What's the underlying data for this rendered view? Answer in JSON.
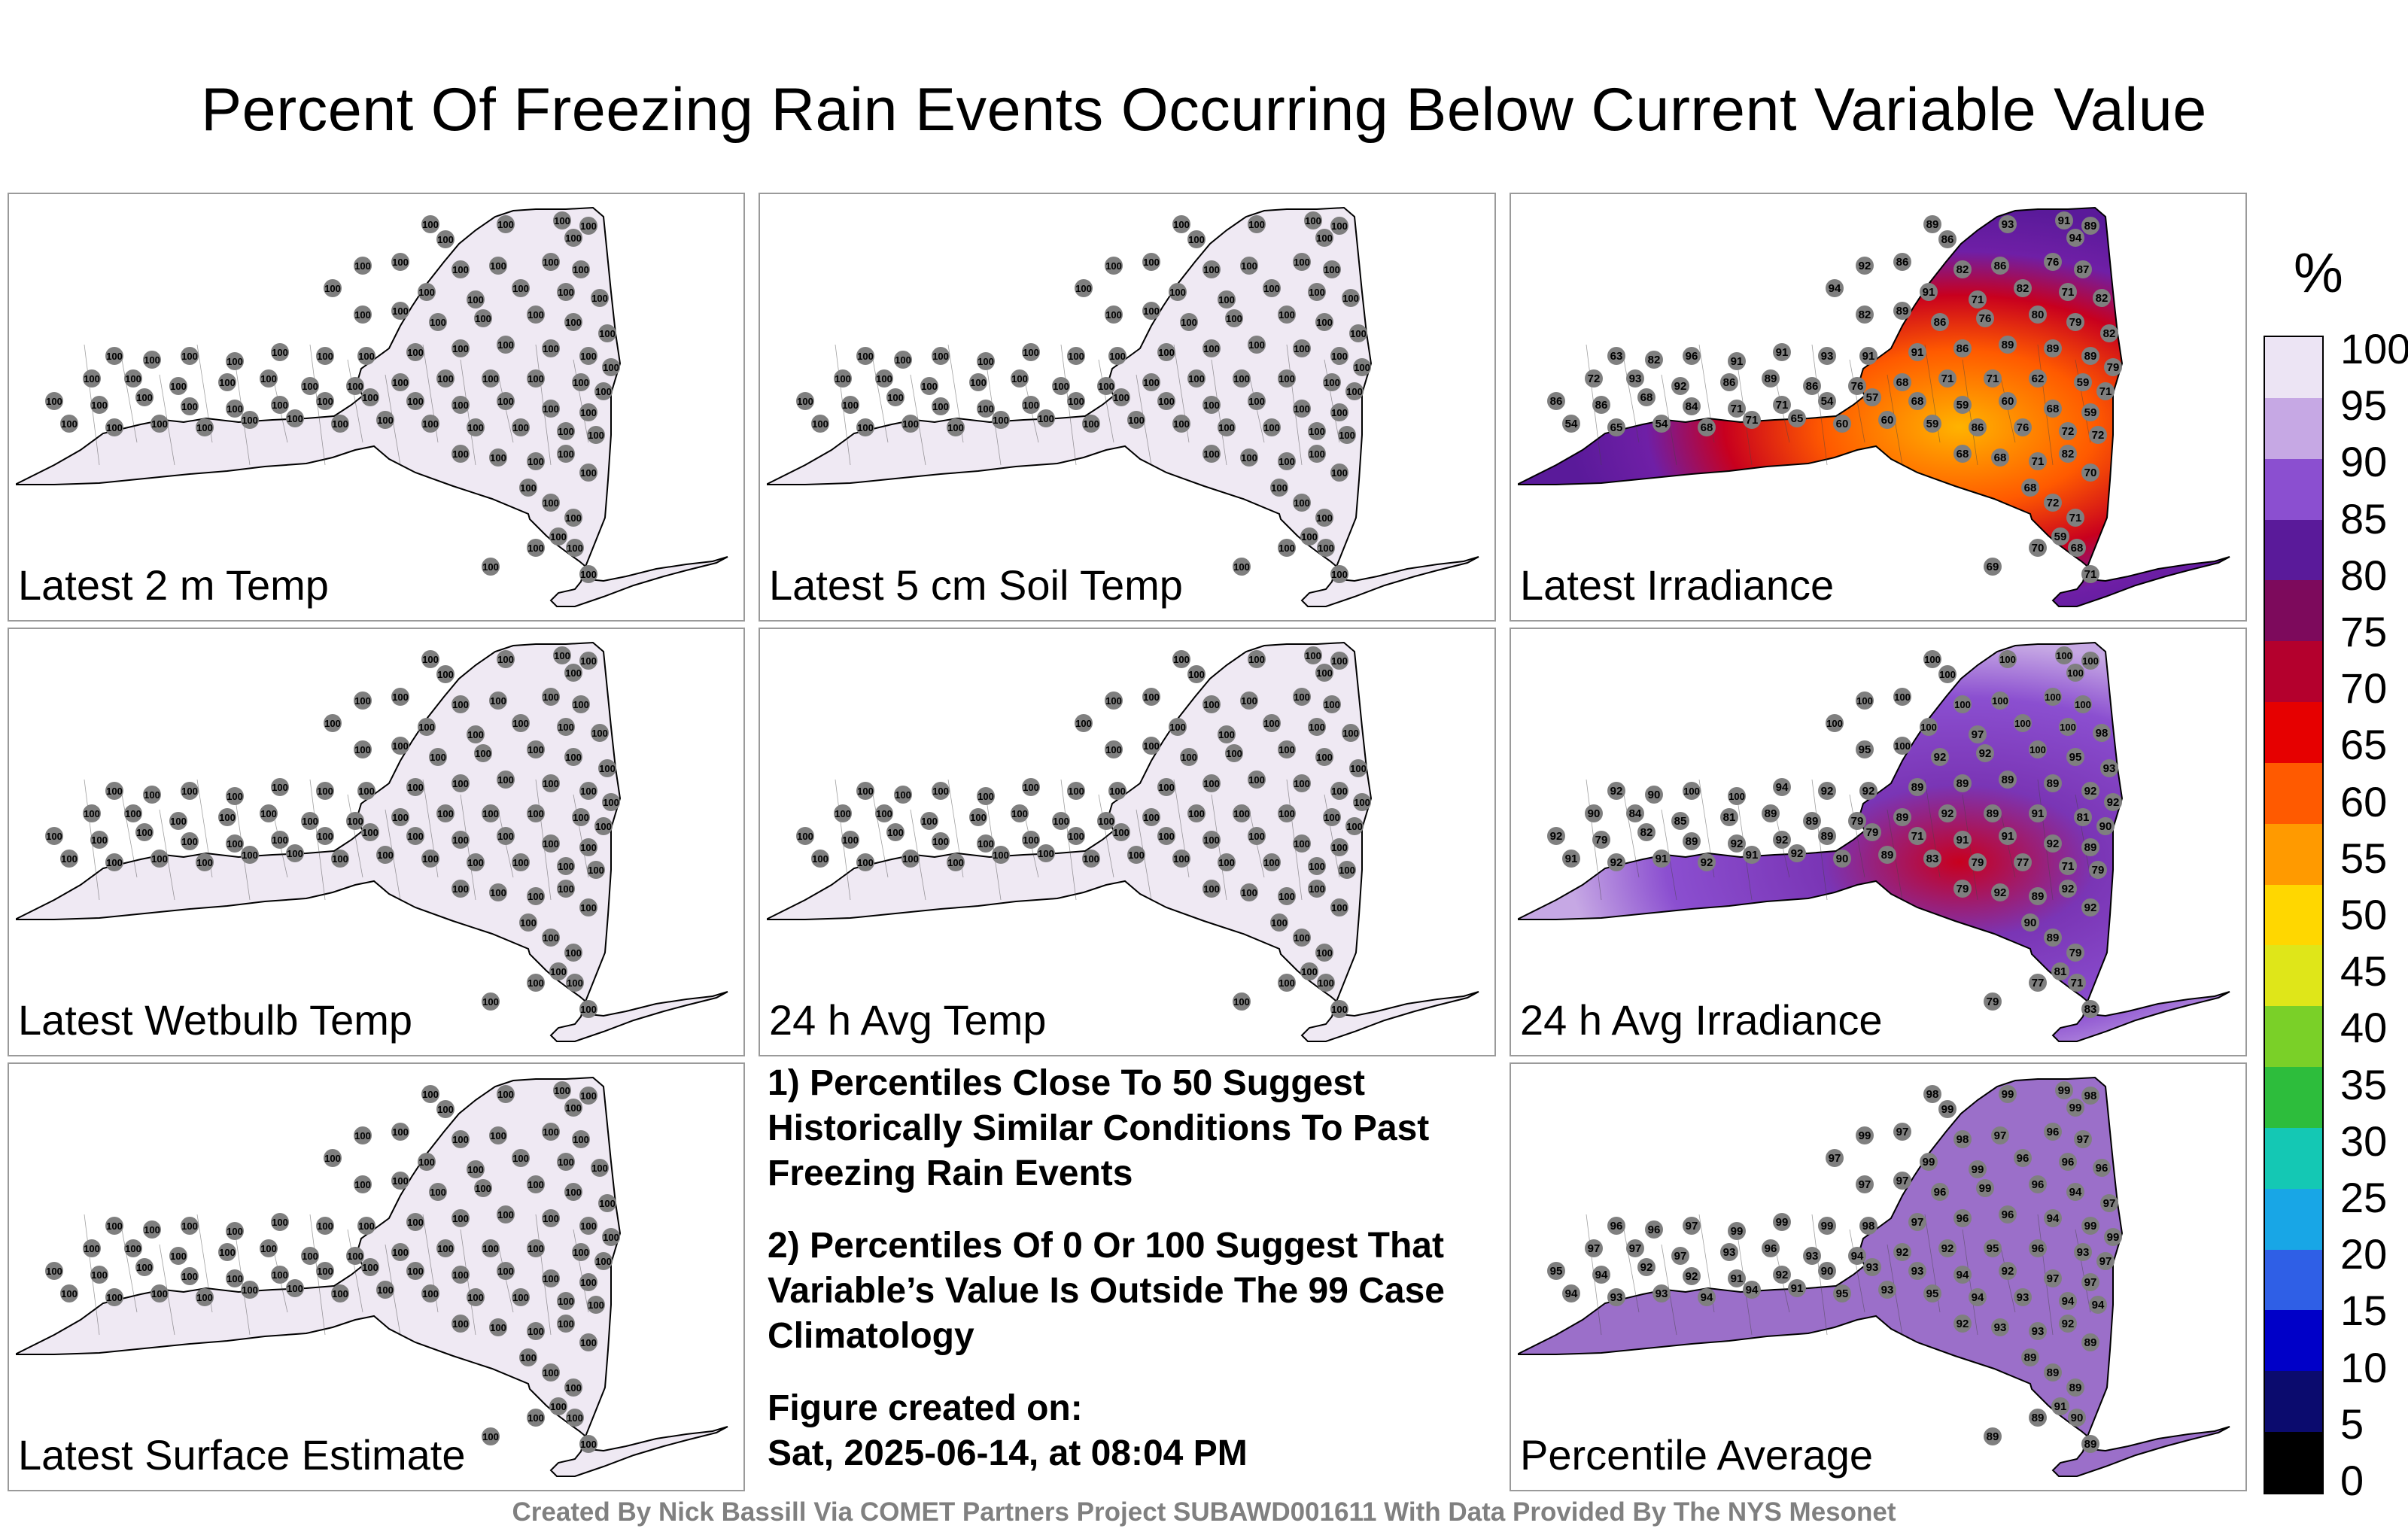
{
  "title": "Percent Of Freezing Rain Events Occurring Below Current Variable Value",
  "panels": [
    {
      "label": "Latest 2 m Temp",
      "fill": "#efe9f3",
      "values": [
        "100",
        "100",
        "100",
        "100",
        "100",
        "100",
        "100",
        "100",
        "100",
        "100",
        "100",
        "100",
        "100",
        "100",
        "100",
        "100",
        "100",
        "100",
        "100",
        "100",
        "100",
        "100",
        "100",
        "100",
        "100",
        "100",
        "100",
        "100",
        "100",
        "100",
        "100",
        "100",
        "100",
        "100",
        "100",
        "100",
        "100",
        "100",
        "100",
        "100",
        "100",
        "100",
        "100",
        "100",
        "100",
        "100",
        "100",
        "100",
        "100",
        "100",
        "100",
        "100",
        "100",
        "100",
        "100",
        "100",
        "100",
        "100",
        "100",
        "100",
        "100",
        "100",
        "100",
        "100",
        "100",
        "100",
        "100",
        "100",
        "100",
        "100",
        "100",
        "100",
        "100",
        "100",
        "100",
        "100",
        "100",
        "100",
        "100",
        "100",
        "100",
        "100",
        "100",
        "100",
        "100",
        "100",
        "100",
        "100",
        "100",
        "100"
      ]
    },
    {
      "label": "Latest 5 cm Soil Temp",
      "fill": "#efe9f3",
      "values": [
        "100",
        "100",
        "100",
        "100",
        "100",
        "100",
        "100",
        "100",
        "100",
        "100",
        "100",
        "100",
        "100",
        "100",
        "100",
        "100",
        "100",
        "100",
        "100",
        "100",
        "100",
        "100",
        "100",
        "100",
        "100",
        "100",
        "100",
        "100",
        "100",
        "100",
        "100",
        "100",
        "100",
        "100",
        "100",
        "100",
        "100",
        "100",
        "100",
        "100",
        "100",
        "100",
        "100",
        "100",
        "100",
        "100",
        "100",
        "100",
        "100",
        "100",
        "100",
        "100",
        "100",
        "100",
        "100",
        "100",
        "100",
        "100",
        "100",
        "100",
        "100",
        "100",
        "100",
        "100",
        "100",
        "100",
        "100",
        "100",
        "100",
        "100",
        "100",
        "100",
        "100",
        "100",
        "100",
        "100",
        "100",
        "100",
        "100",
        "100",
        "100",
        "100",
        "100",
        "100",
        "100",
        "100",
        "100",
        "100",
        "100",
        "100"
      ]
    },
    {
      "label": "Latest Irradiance",
      "fill": "#6f1fa6",
      "values": [
        "89",
        "93",
        "91",
        "89",
        "86",
        "94",
        "92",
        "86",
        "82",
        "86",
        "76",
        "87",
        "94",
        "91",
        "71",
        "82",
        "71",
        "82",
        "82",
        "89",
        "86",
        "76",
        "80",
        "79",
        "82",
        "63",
        "82",
        "96",
        "91",
        "91",
        "93",
        "91",
        "91",
        "86",
        "89",
        "89",
        "89",
        "79",
        "72",
        "93",
        "92",
        "86",
        "89",
        "86",
        "76",
        "68",
        "71",
        "71",
        "62",
        "59",
        "71",
        "86",
        "86",
        "68",
        "84",
        "71",
        "71",
        "54",
        "57",
        "68",
        "59",
        "60",
        "68",
        "59",
        "54",
        "65",
        "54",
        "68",
        "71",
        "65",
        "60",
        "60",
        "59",
        "86",
        "76",
        "72",
        "72",
        "68",
        "68",
        "71",
        "82",
        "70",
        "68",
        "72",
        "71",
        "59",
        "68",
        "71",
        "69",
        "70",
        "64",
        "65",
        "64",
        "57",
        "54",
        "54",
        "54",
        "53",
        "54",
        "54"
      ]
    },
    {
      "label": "Latest Wetbulb Temp",
      "fill": "#efe9f3",
      "values": [
        "100",
        "100",
        "100",
        "100",
        "100",
        "100",
        "100",
        "100",
        "100",
        "100",
        "100",
        "100",
        "100",
        "100",
        "100",
        "100",
        "100",
        "100",
        "100",
        "100",
        "100",
        "100",
        "100",
        "100",
        "100",
        "100",
        "100",
        "100",
        "100",
        "100",
        "100",
        "100",
        "100",
        "100",
        "100",
        "100",
        "100",
        "100",
        "100",
        "100",
        "100",
        "100",
        "100",
        "100",
        "100",
        "100",
        "100",
        "100",
        "100",
        "100",
        "100",
        "100",
        "100",
        "100",
        "100",
        "100",
        "100",
        "100",
        "100",
        "100",
        "100",
        "100",
        "100",
        "100",
        "100",
        "100",
        "100",
        "100",
        "100",
        "100",
        "100",
        "100",
        "100",
        "100",
        "100",
        "100",
        "100",
        "100",
        "100",
        "100",
        "100",
        "100",
        "100",
        "100",
        "100",
        "100",
        "100",
        "100",
        "100",
        "100"
      ]
    },
    {
      "label": "24 h Avg Temp",
      "fill": "#efe9f3",
      "values": [
        "100",
        "100",
        "100",
        "100",
        "100",
        "100",
        "100",
        "100",
        "100",
        "100",
        "100",
        "100",
        "100",
        "100",
        "100",
        "100",
        "100",
        "100",
        "100",
        "100",
        "100",
        "100",
        "100",
        "100",
        "100",
        "100",
        "100",
        "100",
        "100",
        "100",
        "100",
        "100",
        "100",
        "100",
        "100",
        "100",
        "100",
        "100",
        "100",
        "100",
        "100",
        "100",
        "100",
        "100",
        "100",
        "100",
        "100",
        "100",
        "100",
        "100",
        "100",
        "100",
        "100",
        "100",
        "100",
        "100",
        "100",
        "100",
        "100",
        "100",
        "100",
        "100",
        "100",
        "100",
        "100",
        "100",
        "100",
        "100",
        "100",
        "100",
        "100",
        "100",
        "100",
        "100",
        "100",
        "100",
        "100",
        "100",
        "100",
        "100",
        "100",
        "100",
        "100",
        "100",
        "100",
        "100",
        "100",
        "100",
        "100",
        "100"
      ]
    },
    {
      "label": "24 h Avg Irradiance",
      "fill": "#7a35b5",
      "values": [
        "100",
        "100",
        "100",
        "100",
        "100",
        "100",
        "100",
        "100",
        "100",
        "100",
        "100",
        "100",
        "100",
        "100",
        "97",
        "100",
        "100",
        "98",
        "95",
        "100",
        "92",
        "92",
        "100",
        "95",
        "93",
        "92",
        "90",
        "100",
        "100",
        "94",
        "92",
        "92",
        "89",
        "89",
        "89",
        "89",
        "92",
        "92",
        "90",
        "84",
        "85",
        "81",
        "89",
        "89",
        "79",
        "89",
        "92",
        "89",
        "91",
        "81",
        "90",
        "92",
        "79",
        "82",
        "89",
        "92",
        "92",
        "89",
        "79",
        "71",
        "91",
        "91",
        "92",
        "89",
        "91",
        "92",
        "91",
        "92",
        "91",
        "92",
        "90",
        "89",
        "83",
        "79",
        "77",
        "71",
        "79",
        "79",
        "92",
        "89",
        "92",
        "92",
        "90",
        "89",
        "79",
        "81",
        "71",
        "83",
        "79",
        "77"
      ]
    },
    {
      "label": "Latest Surface Estimate",
      "fill": "#efe9f3",
      "values": [
        "100",
        "100",
        "100",
        "100",
        "100",
        "100",
        "100",
        "100",
        "100",
        "100",
        "100",
        "100",
        "100",
        "100",
        "100",
        "100",
        "100",
        "100",
        "100",
        "100",
        "100",
        "100",
        "100",
        "100",
        "100",
        "100",
        "100",
        "100",
        "100",
        "100",
        "100",
        "100",
        "100",
        "100",
        "100",
        "100",
        "100",
        "100",
        "100",
        "100",
        "100",
        "100",
        "100",
        "100",
        "100",
        "100",
        "100",
        "100",
        "100",
        "100",
        "100",
        "100",
        "100",
        "100",
        "100",
        "100",
        "100",
        "100",
        "100",
        "100",
        "100",
        "100",
        "100",
        "100",
        "100",
        "100",
        "100",
        "100",
        "100",
        "100",
        "100",
        "100",
        "100",
        "100",
        "100",
        "100",
        "100",
        "100",
        "100",
        "100",
        "100",
        "100",
        "100",
        "100",
        "100",
        "100",
        "100",
        "100",
        "100",
        "100"
      ]
    },
    {
      "label": "Percentile Average",
      "fill": "#9b6fc9",
      "values": [
        "98",
        "99",
        "99",
        "98",
        "99",
        "99",
        "99",
        "97",
        "98",
        "97",
        "96",
        "97",
        "97",
        "99",
        "99",
        "96",
        "96",
        "96",
        "97",
        "97",
        "96",
        "99",
        "96",
        "94",
        "97",
        "96",
        "96",
        "97",
        "99",
        "99",
        "99",
        "98",
        "97",
        "96",
        "96",
        "94",
        "99",
        "99",
        "97",
        "97",
        "97",
        "93",
        "96",
        "93",
        "94",
        "92",
        "92",
        "95",
        "96",
        "93",
        "97",
        "95",
        "94",
        "92",
        "92",
        "91",
        "92",
        "90",
        "93",
        "93",
        "94",
        "92",
        "97",
        "97",
        "94",
        "93",
        "93",
        "94",
        "94",
        "91",
        "95",
        "93",
        "95",
        "94",
        "93",
        "94",
        "94",
        "92",
        "93",
        "93",
        "92",
        "89",
        "89",
        "89",
        "89",
        "91",
        "90",
        "89",
        "89",
        "89"
      ]
    }
  ],
  "notes": [
    "1) Percentiles Close To 50 Suggest Historically Similar Conditions To Past Freezing Rain Events",
    "2) Percentiles Of 0 Or 100 Suggest That Variable’s Value Is Outside The 99 Case Climatology",
    "Figure created on:",
    "Sat, 2025-06-14, at 08:04 PM"
  ],
  "colorbar": {
    "unit": "%",
    "ticks": [
      "100",
      "95",
      "90",
      "85",
      "80",
      "75",
      "70",
      "65",
      "60",
      "55",
      "50",
      "45",
      "40",
      "35",
      "30",
      "25",
      "20",
      "15",
      "10",
      "5",
      "0"
    ],
    "colors": [
      "#000000",
      "#0b0b6e",
      "#0000c8",
      "#2f5fe6",
      "#18a6e6",
      "#14c8b4",
      "#2dbd3c",
      "#7ad028",
      "#dfe619",
      "#ffd700",
      "#ff9a00",
      "#ff5a00",
      "#e60000",
      "#b4002d",
      "#7d0a5c",
      "#5a1a9a",
      "#8b4fd0",
      "#c6a8e4",
      "#ece4f4"
    ]
  },
  "footer": "Created By Nick Bassill Via COMET Partners Project SUBAWD001611 With Data Provided By The NYS Mesonet"
}
